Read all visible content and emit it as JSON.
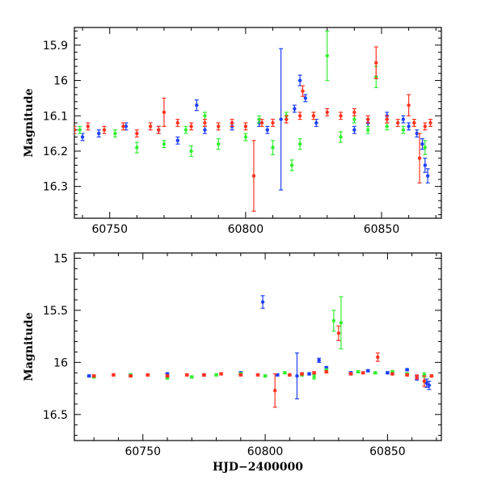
{
  "colors": {
    "blue": "#1f3fff",
    "green": "#33ee33",
    "red": "#ff3322"
  },
  "chart_data": [
    {
      "type": "scatter",
      "xlabel": "",
      "ylabel": "Magnitude",
      "xlim": [
        60737,
        60872
      ],
      "ylim": [
        16.39,
        15.85
      ],
      "y_inverted": true,
      "xticks": [
        60750,
        60800,
        60850
      ],
      "xtick_labels": [
        "60750",
        "60800",
        "60850"
      ],
      "yticks": [
        15.9,
        16.0,
        16.1,
        16.2,
        16.3
      ],
      "ytick_labels": [
        "15.9",
        "16",
        "16.1",
        "16.2",
        "16.3"
      ],
      "error_bars": true,
      "series": [
        {
          "color": "blue",
          "points": [
            [
              60740,
              16.16
            ],
            [
              60746,
              16.15
            ],
            [
              60756,
              16.13
            ],
            [
              60768,
              16.14
            ],
            [
              60775,
              16.17
            ],
            [
              60782,
              16.07
            ],
            [
              60785,
              16.14
            ],
            [
              60795,
              16.13
            ],
            [
              60805,
              16.12
            ],
            [
              60808,
              16.14
            ],
            [
              60813,
              16.11
            ],
            [
              60818,
              16.08
            ],
            [
              60820,
              16.0
            ],
            [
              60822,
              16.05
            ],
            [
              60826,
              16.12
            ],
            [
              60840,
              16.14
            ],
            [
              60845,
              16.12
            ],
            [
              60852,
              16.1
            ],
            [
              60858,
              16.11
            ],
            [
              60860,
              16.13
            ],
            [
              60863,
              16.15
            ],
            [
              60865,
              16.18
            ],
            [
              60866,
              16.24
            ],
            [
              60867,
              16.27
            ]
          ],
          "errors": [
            0.01,
            0.01,
            0.01,
            0.01,
            0.01,
            0.015,
            0.01,
            0.01,
            0.01,
            0.01,
            0.2,
            0.01,
            0.015,
            0.01,
            0.01,
            0.01,
            0.01,
            0.01,
            0.01,
            0.01,
            0.01,
            0.015,
            0.02,
            0.02
          ]
        },
        {
          "color": "green",
          "points": [
            [
              60739,
              16.14
            ],
            [
              60752,
              16.15
            ],
            [
              60760,
              16.19
            ],
            [
              60770,
              16.18
            ],
            [
              60778,
              16.14
            ],
            [
              60780,
              16.2
            ],
            [
              60785,
              16.1
            ],
            [
              60790,
              16.18
            ],
            [
              60800,
              16.16
            ],
            [
              60805,
              16.11
            ],
            [
              60810,
              16.19
            ],
            [
              60815,
              16.1
            ],
            [
              60817,
              16.24
            ],
            [
              60820,
              16.18
            ],
            [
              60825,
              16.1
            ],
            [
              60830,
              15.93
            ],
            [
              60835,
              16.16
            ],
            [
              60840,
              16.11
            ],
            [
              60845,
              16.14
            ],
            [
              60848,
              15.99
            ],
            [
              60852,
              16.13
            ],
            [
              60858,
              16.14
            ],
            [
              60862,
              16.12
            ],
            [
              60866,
              16.19
            ]
          ],
          "errors": [
            0.01,
            0.01,
            0.015,
            0.01,
            0.01,
            0.015,
            0.01,
            0.015,
            0.01,
            0.01,
            0.02,
            0.01,
            0.015,
            0.015,
            0.01,
            0.07,
            0.015,
            0.01,
            0.01,
            0.03,
            0.01,
            0.01,
            0.01,
            0.02
          ]
        },
        {
          "color": "red",
          "points": [
            [
              60737,
              16.14
            ],
            [
              60742,
              16.13
            ],
            [
              60748,
              16.14
            ],
            [
              60755,
              16.13
            ],
            [
              60760,
              16.15
            ],
            [
              60765,
              16.13
            ],
            [
              60768,
              16.14
            ],
            [
              60770,
              16.09
            ],
            [
              60775,
              16.12
            ],
            [
              60780,
              16.13
            ],
            [
              60785,
              16.12
            ],
            [
              60790,
              16.13
            ],
            [
              60795,
              16.12
            ],
            [
              60800,
              16.13
            ],
            [
              60803,
              16.27
            ],
            [
              60806,
              16.12
            ],
            [
              60810,
              16.12
            ],
            [
              60815,
              16.11
            ],
            [
              60820,
              16.1
            ],
            [
              60821,
              16.03
            ],
            [
              60825,
              16.1
            ],
            [
              60830,
              16.09
            ],
            [
              60835,
              16.1
            ],
            [
              60840,
              16.09
            ],
            [
              60845,
              16.11
            ],
            [
              60848,
              15.95
            ],
            [
              60852,
              16.11
            ],
            [
              60856,
              16.12
            ],
            [
              60860,
              16.07
            ],
            [
              60862,
              16.12
            ],
            [
              60864,
              16.22
            ],
            [
              60866,
              16.13
            ],
            [
              60868,
              16.12
            ]
          ],
          "errors": [
            0.01,
            0.01,
            0.01,
            0.01,
            0.01,
            0.01,
            0.01,
            0.04,
            0.01,
            0.01,
            0.01,
            0.01,
            0.01,
            0.01,
            0.1,
            0.01,
            0.01,
            0.01,
            0.01,
            0.015,
            0.01,
            0.01,
            0.01,
            0.01,
            0.01,
            0.045,
            0.01,
            0.01,
            0.03,
            0.01,
            0.07,
            0.01,
            0.01
          ]
        }
      ]
    },
    {
      "type": "scatter",
      "xlabel": "HJD−2400000",
      "ylabel": "Magnitude",
      "xlim": [
        60722,
        60872
      ],
      "ylim": [
        16.75,
        14.95
      ],
      "y_inverted": true,
      "xticks": [
        60750,
        60800,
        60850
      ],
      "xtick_labels": [
        "60750",
        "60800",
        "60850"
      ],
      "yticks": [
        15.0,
        15.5,
        16.0,
        16.5
      ],
      "ytick_labels": [
        "15",
        "15.5",
        "16",
        "16.5"
      ],
      "error_bars": true,
      "series": [
        {
          "color": "blue",
          "points": [
            [
              60728,
              16.13
            ],
            [
              60745,
              16.12
            ],
            [
              60760,
              16.11
            ],
            [
              60775,
              16.12
            ],
            [
              60790,
              16.1
            ],
            [
              60799,
              15.42
            ],
            [
              60805,
              16.12
            ],
            [
              60813,
              16.13
            ],
            [
              60818,
              16.11
            ],
            [
              60822,
              15.98
            ],
            [
              60825,
              16.05
            ],
            [
              60835,
              16.1
            ],
            [
              60842,
              16.08
            ],
            [
              60850,
              16.1
            ],
            [
              60858,
              16.07
            ],
            [
              60862,
              16.15
            ],
            [
              60866,
              16.2
            ],
            [
              60867,
              16.22
            ]
          ],
          "errors": [
            0.01,
            0.01,
            0.01,
            0.01,
            0.01,
            0.06,
            0.01,
            0.22,
            0.01,
            0.02,
            0.01,
            0.01,
            0.01,
            0.01,
            0.01,
            0.02,
            0.04,
            0.04
          ]
        },
        {
          "color": "green",
          "points": [
            [
              60730,
              16.14
            ],
            [
              60745,
              16.12
            ],
            [
              60760,
              16.15
            ],
            [
              60770,
              16.14
            ],
            [
              60780,
              16.12
            ],
            [
              60790,
              16.11
            ],
            [
              60800,
              16.13
            ],
            [
              60808,
              16.1
            ],
            [
              60815,
              16.12
            ],
            [
              60820,
              16.14
            ],
            [
              60825,
              16.08
            ],
            [
              60828,
              15.6
            ],
            [
              60831,
              15.62
            ],
            [
              60838,
              16.09
            ],
            [
              60845,
              16.1
            ],
            [
              60852,
              16.09
            ],
            [
              60858,
              16.11
            ],
            [
              60865,
              16.12
            ]
          ],
          "errors": [
            0.01,
            0.01,
            0.01,
            0.01,
            0.01,
            0.01,
            0.01,
            0.01,
            0.01,
            0.02,
            0.02,
            0.1,
            0.25,
            0.01,
            0.01,
            0.01,
            0.01,
            0.02
          ]
        },
        {
          "color": "red",
          "points": [
            [
              60730,
              16.13
            ],
            [
              60738,
              16.12
            ],
            [
              60745,
              16.13
            ],
            [
              60752,
              16.12
            ],
            [
              60760,
              16.13
            ],
            [
              60768,
              16.12
            ],
            [
              60775,
              16.12
            ],
            [
              60782,
              16.11
            ],
            [
              60790,
              16.12
            ],
            [
              60797,
              16.12
            ],
            [
              60804,
              16.27
            ],
            [
              60810,
              16.12
            ],
            [
              60815,
              16.11
            ],
            [
              60820,
              16.1
            ],
            [
              60825,
              16.09
            ],
            [
              60830,
              15.72
            ],
            [
              60835,
              16.11
            ],
            [
              60840,
              16.1
            ],
            [
              60846,
              15.95
            ],
            [
              60852,
              16.11
            ],
            [
              60858,
              16.12
            ],
            [
              60862,
              16.14
            ],
            [
              60865,
              16.18
            ],
            [
              60868,
              16.13
            ]
          ],
          "errors": [
            0.01,
            0.01,
            0.01,
            0.01,
            0.01,
            0.01,
            0.01,
            0.01,
            0.01,
            0.01,
            0.16,
            0.01,
            0.01,
            0.01,
            0.01,
            0.07,
            0.01,
            0.01,
            0.04,
            0.01,
            0.01,
            0.02,
            0.05,
            0.01
          ]
        }
      ]
    }
  ]
}
